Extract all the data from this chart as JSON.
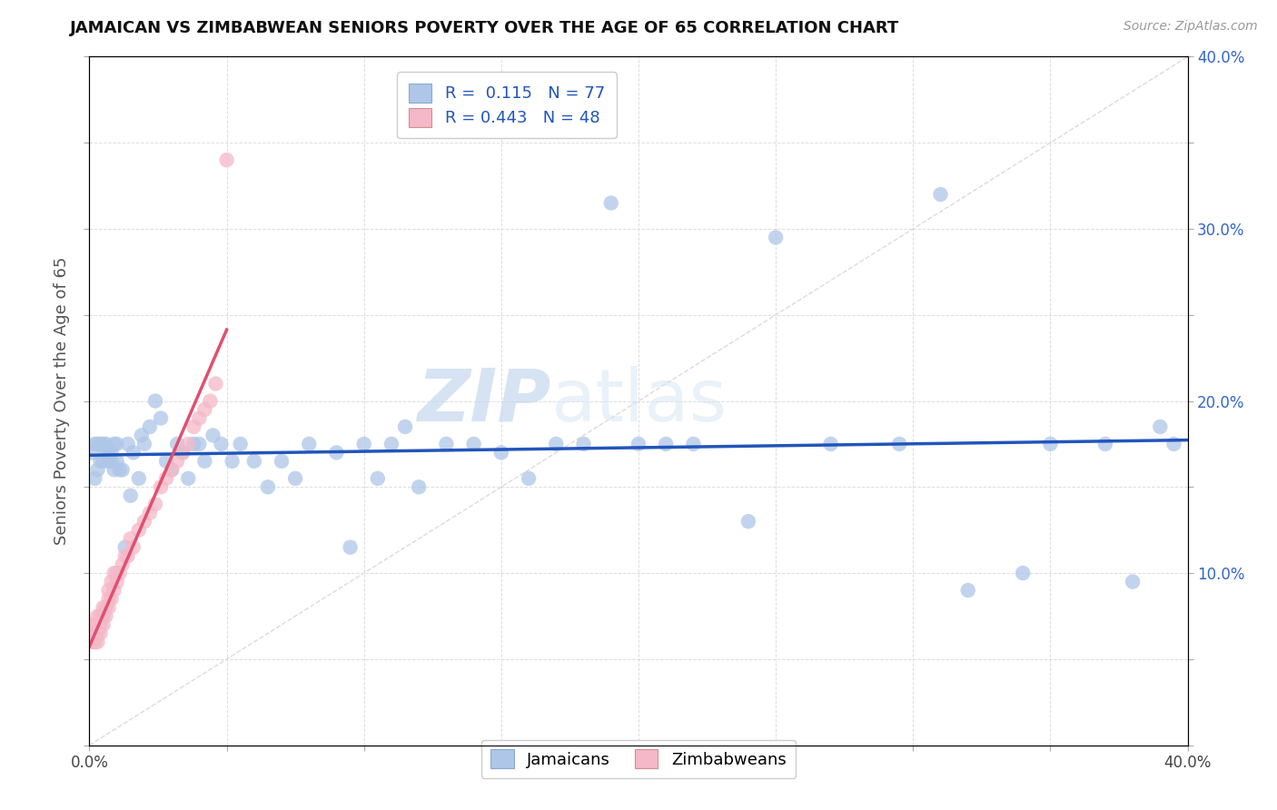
{
  "title": "JAMAICAN VS ZIMBABWEAN SENIORS POVERTY OVER THE AGE OF 65 CORRELATION CHART",
  "source": "Source: ZipAtlas.com",
  "ylabel": "Seniors Poverty Over the Age of 65",
  "xlim": [
    0.0,
    0.4
  ],
  "ylim": [
    0.0,
    0.4
  ],
  "jamaicans_R": 0.115,
  "jamaicans_N": 77,
  "zimbabweans_R": 0.443,
  "zimbabweans_N": 48,
  "jamaican_color": "#aec6e8",
  "zimbabwean_color": "#f4b8c8",
  "jamaican_line_color": "#2255bb",
  "zimbabwean_line_color": "#e05070",
  "diagonal_color": "#cccccc",
  "watermark_zip": "ZIP",
  "watermark_atlas": "atlas",
  "legend_jamaican_label": "Jamaicans",
  "legend_zimbabwean_label": "Zimbabweans",
  "jamaicans_x": [
    0.001,
    0.002,
    0.002,
    0.003,
    0.003,
    0.004,
    0.004,
    0.005,
    0.005,
    0.006,
    0.006,
    0.007,
    0.007,
    0.008,
    0.008,
    0.009,
    0.009,
    0.01,
    0.01,
    0.011,
    0.012,
    0.013,
    0.014,
    0.015,
    0.016,
    0.018,
    0.019,
    0.02,
    0.022,
    0.024,
    0.026,
    0.028,
    0.03,
    0.032,
    0.034,
    0.036,
    0.038,
    0.04,
    0.042,
    0.045,
    0.048,
    0.052,
    0.055,
    0.06,
    0.065,
    0.07,
    0.075,
    0.08,
    0.09,
    0.095,
    0.1,
    0.105,
    0.11,
    0.115,
    0.12,
    0.13,
    0.14,
    0.15,
    0.16,
    0.17,
    0.18,
    0.19,
    0.2,
    0.21,
    0.22,
    0.24,
    0.25,
    0.27,
    0.295,
    0.31,
    0.32,
    0.34,
    0.35,
    0.37,
    0.38,
    0.39,
    0.395
  ],
  "jamaicans_y": [
    0.17,
    0.155,
    0.175,
    0.16,
    0.175,
    0.165,
    0.175,
    0.165,
    0.175,
    0.17,
    0.175,
    0.165,
    0.17,
    0.165,
    0.17,
    0.16,
    0.175,
    0.165,
    0.175,
    0.16,
    0.16,
    0.115,
    0.175,
    0.145,
    0.17,
    0.155,
    0.18,
    0.175,
    0.185,
    0.2,
    0.19,
    0.165,
    0.16,
    0.175,
    0.17,
    0.155,
    0.175,
    0.175,
    0.165,
    0.18,
    0.175,
    0.165,
    0.175,
    0.165,
    0.15,
    0.165,
    0.155,
    0.175,
    0.17,
    0.115,
    0.175,
    0.155,
    0.175,
    0.185,
    0.15,
    0.175,
    0.175,
    0.17,
    0.155,
    0.175,
    0.175,
    0.315,
    0.175,
    0.175,
    0.175,
    0.13,
    0.295,
    0.175,
    0.175,
    0.32,
    0.09,
    0.1,
    0.175,
    0.175,
    0.095,
    0.185,
    0.175
  ],
  "zimbabweans_x": [
    0.0,
    0.001,
    0.001,
    0.002,
    0.002,
    0.002,
    0.003,
    0.003,
    0.003,
    0.004,
    0.004,
    0.004,
    0.005,
    0.005,
    0.005,
    0.006,
    0.006,
    0.007,
    0.007,
    0.007,
    0.008,
    0.008,
    0.009,
    0.009,
    0.01,
    0.01,
    0.011,
    0.012,
    0.013,
    0.014,
    0.015,
    0.016,
    0.018,
    0.02,
    0.022,
    0.024,
    0.026,
    0.028,
    0.03,
    0.032,
    0.034,
    0.036,
    0.038,
    0.04,
    0.042,
    0.044,
    0.046,
    0.05
  ],
  "zimbabweans_y": [
    0.07,
    0.06,
    0.065,
    0.065,
    0.06,
    0.07,
    0.06,
    0.065,
    0.075,
    0.065,
    0.07,
    0.075,
    0.07,
    0.075,
    0.08,
    0.075,
    0.08,
    0.08,
    0.085,
    0.09,
    0.085,
    0.095,
    0.09,
    0.1,
    0.095,
    0.1,
    0.1,
    0.105,
    0.11,
    0.11,
    0.12,
    0.115,
    0.125,
    0.13,
    0.135,
    0.14,
    0.15,
    0.155,
    0.16,
    0.165,
    0.17,
    0.175,
    0.185,
    0.19,
    0.195,
    0.2,
    0.21,
    0.34
  ]
}
